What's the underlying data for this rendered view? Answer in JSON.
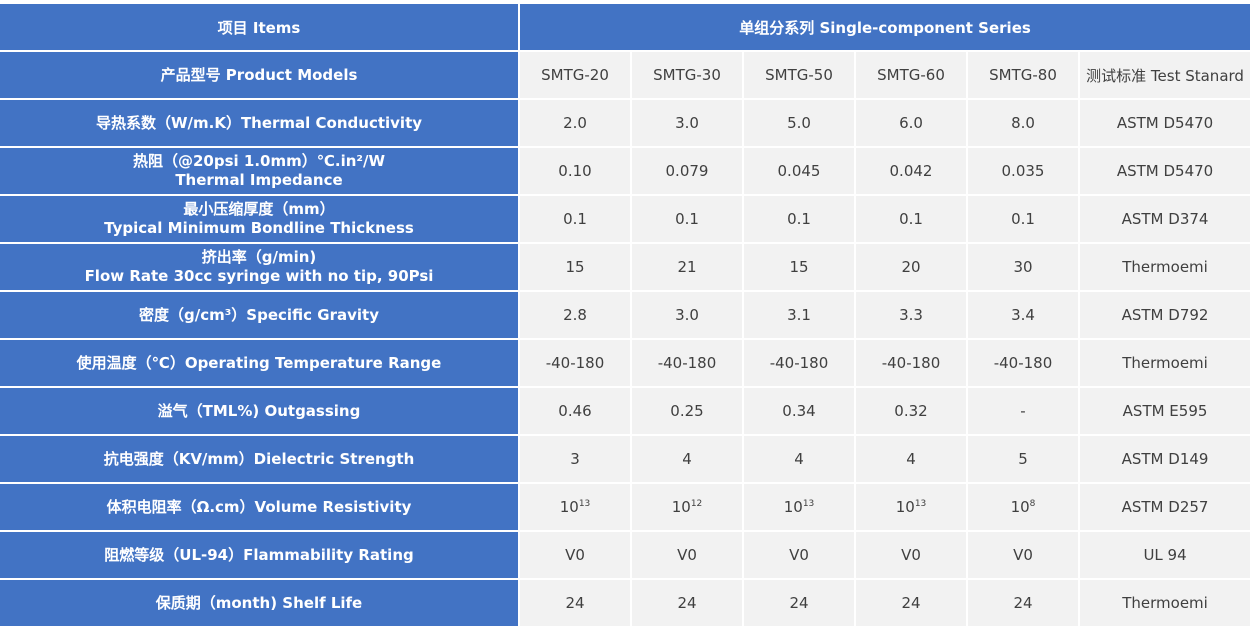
{
  "header": {
    "items": "项目  Items",
    "series": "单组分系列 Single-component Series"
  },
  "models_row": {
    "label": "产品型号 Product Models",
    "models": [
      "SMTG-20",
      "SMTG-30",
      "SMTG-50",
      "SMTG-60",
      "SMTG-80"
    ],
    "standard": "测试标准 Test Stanard"
  },
  "rows": [
    {
      "label": "导热系数（W/m.K）Thermal Conductivity",
      "label2": "",
      "values": [
        "2.0",
        "3.0",
        "5.0",
        "6.0",
        "8.0"
      ],
      "standard": "ASTM D5470"
    },
    {
      "label": "热阻（@20psi 1.0mm）℃.in²/W",
      "label2": "Thermal Impedance",
      "values": [
        "0.10",
        "0.079",
        "0.045",
        "0.042",
        "0.035"
      ],
      "standard": "ASTM D5470"
    },
    {
      "label": "最小压缩厚度（mm）",
      "label2": "Typical Minimum Bondline Thickness",
      "values": [
        "0.1",
        "0.1",
        "0.1",
        "0.1",
        "0.1"
      ],
      "standard": "ASTM D374"
    },
    {
      "label": "挤出率（g/min)",
      "label2": "Flow Rate 30cc syringe with no tip, 90Psi",
      "values": [
        "15",
        "21",
        "15",
        "20",
        "30"
      ],
      "standard": "Thermoemi"
    },
    {
      "label": "密度（g/cm³）Specific Gravity",
      "label2": "",
      "values": [
        "2.8",
        "3.0",
        "3.1",
        "3.3",
        "3.4"
      ],
      "standard": "ASTM D792"
    },
    {
      "label": "使用温度（℃）Operating Temperature Range",
      "label2": "",
      "values": [
        "-40-180",
        "-40-180",
        "-40-180",
        "-40-180",
        "-40-180"
      ],
      "standard": "Thermoemi"
    },
    {
      "label": "溢气（TML%) Outgassing",
      "label2": "",
      "values": [
        "0.46",
        "0.25",
        "0.34",
        "0.32",
        "-"
      ],
      "standard": "ASTM E595"
    },
    {
      "label": "抗电强度（KV/mm）Dielectric Strength",
      "label2": "",
      "values": [
        "3",
        "4",
        "4",
        "4",
        "5"
      ],
      "standard": "ASTM D149"
    },
    {
      "label": "体积电阻率（Ω.cm）Volume Resistivity",
      "label2": "",
      "values": [
        "10",
        "10",
        "10",
        "10",
        "10"
      ],
      "exponents": [
        "13",
        "12",
        "13",
        "13",
        "8"
      ],
      "standard": "ASTM D257"
    },
    {
      "label": "阻燃等级（UL-94）Flammability Rating",
      "label2": "",
      "values": [
        "V0",
        "V0",
        "V0",
        "V0",
        "V0"
      ],
      "standard": "UL 94"
    },
    {
      "label": "保质期（month) Shelf Life",
      "label2": "",
      "values": [
        "24",
        "24",
        "24",
        "24",
        "24"
      ],
      "standard": "Thermoemi"
    }
  ]
}
